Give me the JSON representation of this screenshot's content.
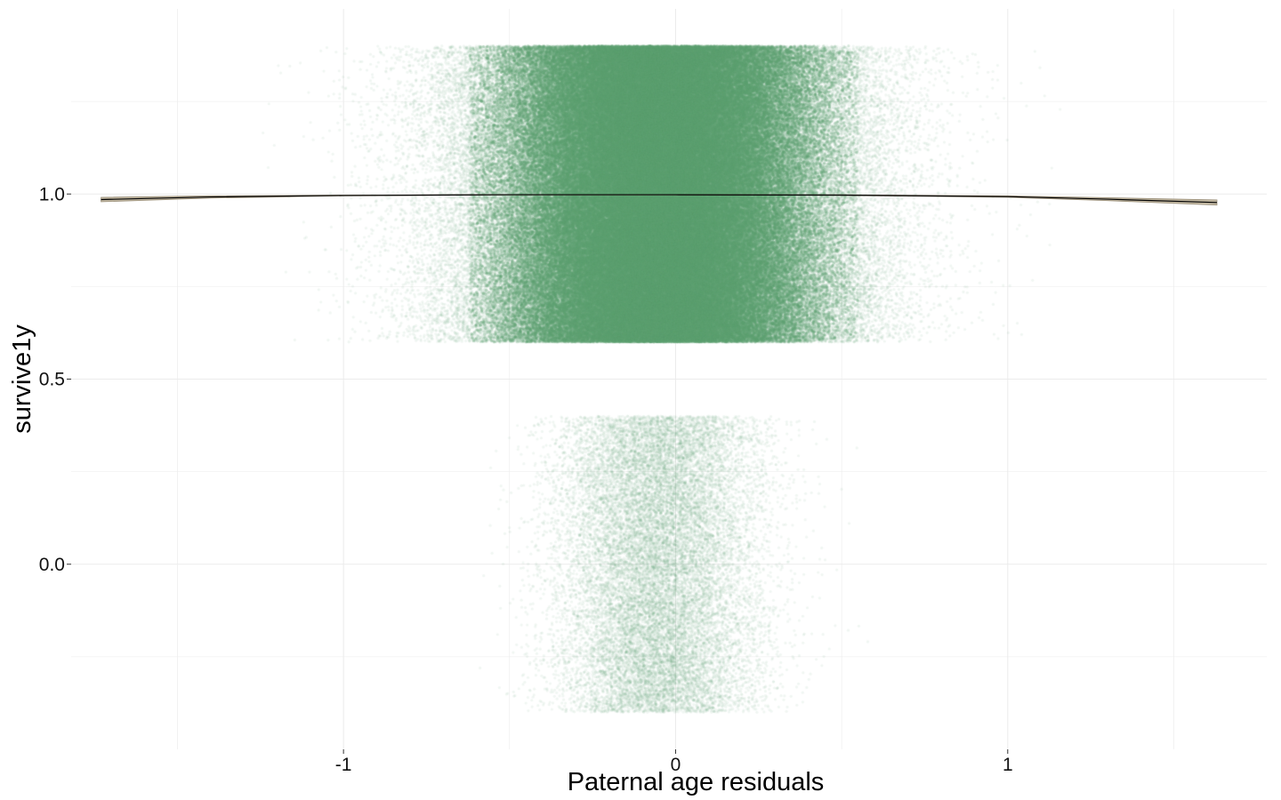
{
  "chart_data": {
    "type": "scatter",
    "title": "",
    "xlabel": "Paternal age residuals",
    "ylabel": "survive1y",
    "xlim": [
      -1.82,
      1.78
    ],
    "ylim": [
      -0.5,
      1.5
    ],
    "x_ticks": [
      -1,
      0,
      1
    ],
    "x_tick_labels": [
      "-1",
      "0",
      "1"
    ],
    "y_ticks": [
      0.0,
      0.5,
      1.0
    ],
    "y_tick_labels": [
      "0.0",
      "0.5",
      "1.0"
    ],
    "grid": true,
    "legend": "none",
    "series": [
      {
        "description": "jittered points, survive1y = 1 (jitter ±0.4)",
        "outcome": 1,
        "jitter_y": 0.4,
        "x_mean": -0.05,
        "x_sd": 0.28,
        "x_range": [
          -1.53,
          1.58
        ],
        "relative_count": "very large (dense core from about -0.6 to 0.55)"
      },
      {
        "description": "jittered points, survive1y = 0 (jitter ±0.4)",
        "outcome": 0,
        "jitter_y": 0.4,
        "x_mean": -0.05,
        "x_sd": 0.15,
        "x_range": [
          -1.1,
          1.1
        ],
        "relative_count": "small"
      }
    ],
    "smooth": {
      "description": "fitted curve with confidence band",
      "x": [
        -1.73,
        -1.4,
        -1.0,
        -0.5,
        0.0,
        0.5,
        1.0,
        1.3,
        1.63
      ],
      "y": [
        0.985,
        0.992,
        0.996,
        0.998,
        0.998,
        0.997,
        0.993,
        0.986,
        0.977
      ],
      "ci_halfwidth": [
        0.006,
        0.003,
        0.001,
        0.0005,
        0.0005,
        0.0007,
        0.002,
        0.004,
        0.007
      ]
    },
    "colors": {
      "points": "#5b9e6e",
      "band": "#b7ab92",
      "band_edge": "#9c917b",
      "line": "#000000",
      "grid": "#ebebeb",
      "text": "#111111"
    }
  }
}
